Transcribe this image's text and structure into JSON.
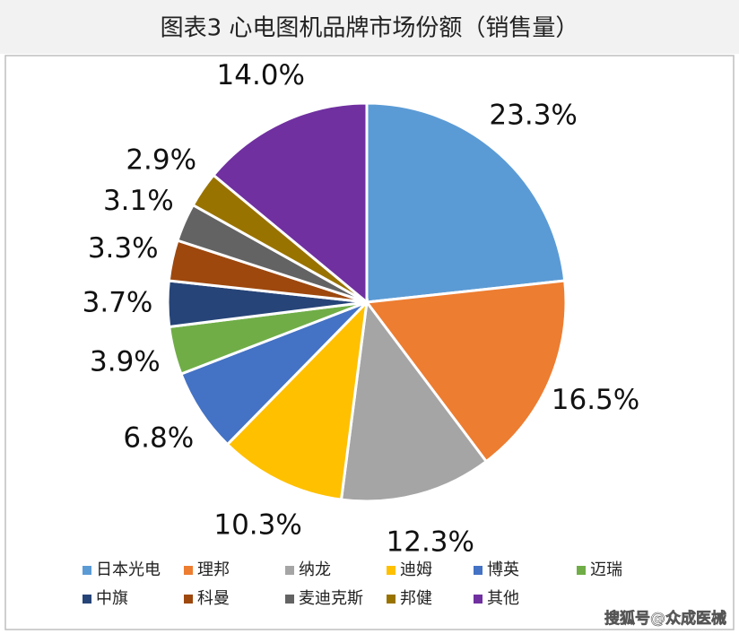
{
  "chart_data": {
    "type": "pie",
    "title": "图表3 心电图机品牌市场份额（销售量）",
    "categories": [
      "日本光电",
      "理邦",
      "纳龙",
      "迪姆",
      "博英",
      "迈瑞",
      "中旗",
      "科曼",
      "麦迪克斯",
      "邦健",
      "其他"
    ],
    "values": [
      23.3,
      16.5,
      12.3,
      10.3,
      6.8,
      3.9,
      3.7,
      3.3,
      3.1,
      2.9,
      14.0
    ],
    "value_labels": [
      "23.3%",
      "16.5%",
      "12.3%",
      "10.3%",
      "6.8%",
      "3.9%",
      "3.7%",
      "3.3%",
      "3.1%",
      "2.9%",
      "14.0%"
    ],
    "colors": [
      "#5b9bd5",
      "#ed7d31",
      "#a5a5a5",
      "#ffc000",
      "#4472c4",
      "#70ad47",
      "#264478",
      "#9e480e",
      "#636363",
      "#997300",
      "#7030a0"
    ],
    "legend": "bottom",
    "watermark": "搜狐号@众成医械"
  }
}
